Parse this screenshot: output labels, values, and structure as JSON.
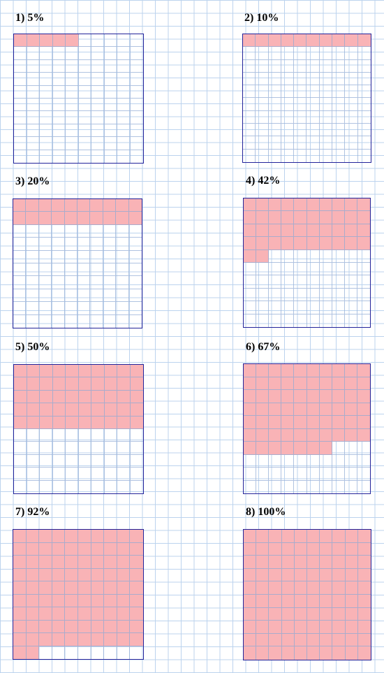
{
  "grid_color": "#bcd3ee",
  "box_border_color": "#23239a",
  "fill_color": "#f9b3b6",
  "cells_per_side": 10,
  "items": [
    {
      "label": "1) 5%",
      "percent": 5
    },
    {
      "label": "2) 10%",
      "percent": 10
    },
    {
      "label": "3) 20%",
      "percent": 20
    },
    {
      "label": "4) 42%",
      "percent": 42
    },
    {
      "label": "5) 50%",
      "percent": 50
    },
    {
      "label": "6) 67%",
      "percent": 67
    },
    {
      "label": "7) 92%",
      "percent": 92
    },
    {
      "label": "8) 100%",
      "percent": 100
    }
  ]
}
